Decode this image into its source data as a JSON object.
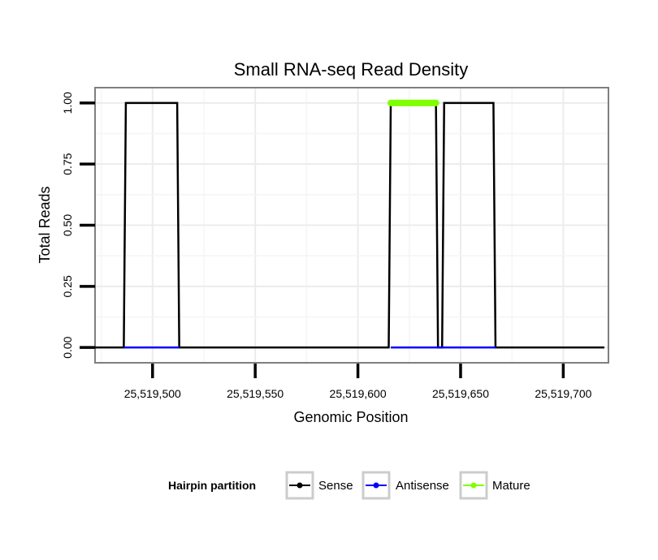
{
  "chart_data": {
    "type": "line",
    "title": "Small RNA-seq Read Density",
    "xlabel": "Genomic Position",
    "ylabel": "Total Reads",
    "xlim": [
      25519472,
      25519722
    ],
    "ylim": [
      -0.0625,
      1.0625
    ],
    "x_ticks": [
      25519500,
      25519550,
      25519600,
      25519650,
      25519700
    ],
    "x_tick_labels": [
      "25,519,500",
      "25,519,550",
      "25,519,600",
      "25,519,650",
      "25,519,700"
    ],
    "y_ticks": [
      0,
      0.25,
      0.5,
      0.75,
      1.0
    ],
    "y_tick_labels": [
      "0.00",
      "0.25",
      "0.50",
      "0.75",
      "1.00"
    ],
    "grid": true,
    "series": [
      {
        "name": "Sense",
        "color": "#000000",
        "x": [
          25519472,
          25519486,
          25519487,
          25519512,
          25519513,
          25519615,
          25519616,
          25519638,
          25519639,
          25519641,
          25519642,
          25519666,
          25519667,
          25519720
        ],
        "y": [
          0,
          0,
          1,
          1,
          0,
          0,
          1,
          1,
          0,
          0,
          1,
          1,
          0,
          0
        ]
      },
      {
        "name": "Antisense",
        "color": "#0000ff",
        "x": [
          25519486,
          25519513,
          25519616,
          25519667
        ],
        "y": [
          0,
          0,
          0,
          0
        ],
        "segments": [
          [
            0,
            1
          ],
          [
            2,
            3
          ]
        ]
      },
      {
        "name": "Mature",
        "color": "#7fff00",
        "x": [
          25519616,
          25519638
        ],
        "y": [
          1,
          1
        ]
      }
    ],
    "legend": {
      "title": "Hairpin partition",
      "position": "bottom",
      "entries": [
        {
          "label": "Sense",
          "color": "#000000"
        },
        {
          "label": "Antisense",
          "color": "#0000ff"
        },
        {
          "label": "Mature",
          "color": "#7fff00"
        }
      ]
    }
  }
}
